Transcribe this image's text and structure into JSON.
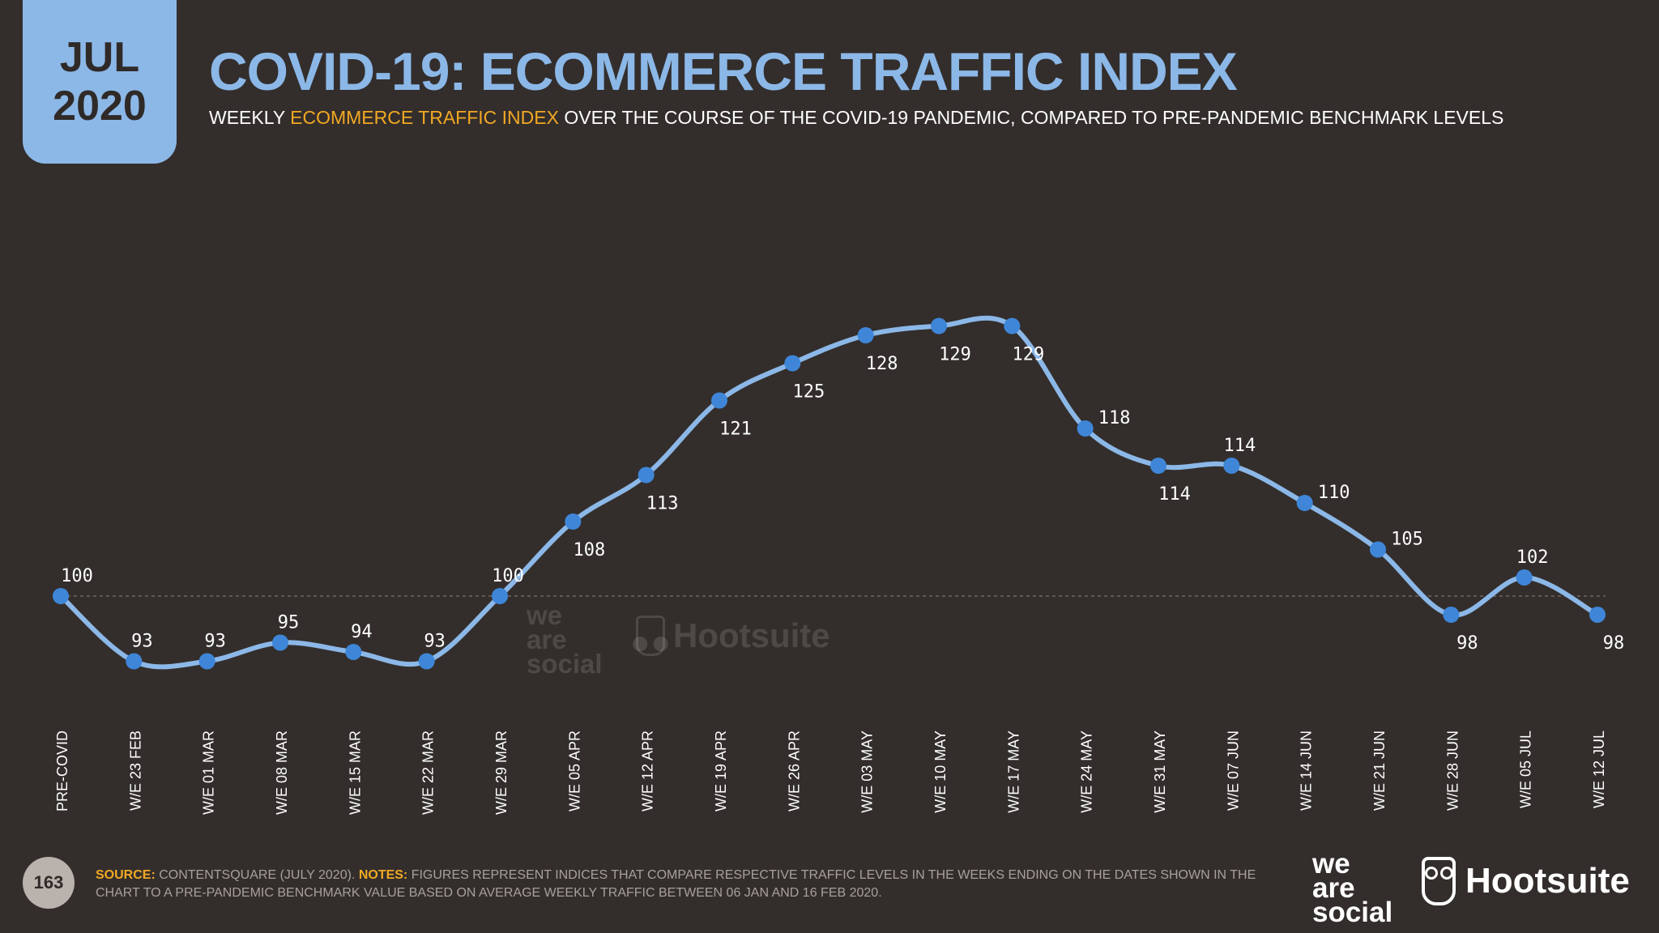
{
  "badge": {
    "month": "JUL",
    "year": "2020"
  },
  "title": "COVID-19: ECOMMERCE TRAFFIC INDEX",
  "subtitle": {
    "prefix": "WEEKLY ",
    "highlight": "ECOMMERCE TRAFFIC INDEX",
    "suffix": " OVER THE COURSE OF THE COVID-19 PANDEMIC, COMPARED TO PRE-PANDEMIC BENCHMARK LEVELS"
  },
  "page_number": "163",
  "footer": {
    "source_label": "SOURCE:",
    "source_text": " CONTENTSQUARE (JULY 2020). ",
    "notes_label": "NOTES:",
    "notes_text": " FIGURES REPRESENT INDICES THAT COMPARE RESPECTIVE TRAFFIC LEVELS IN THE WEEKS ENDING ON THE DATES SHOWN IN THE CHART TO A PRE-PANDEMIC BENCHMARK VALUE BASED ON AVERAGE WEEKLY TRAFFIC BETWEEN 06 JAN AND 16 FEB 2020."
  },
  "logos": {
    "we_are_social": [
      "we",
      "are",
      "social"
    ],
    "hootsuite": "Hootsuite"
  },
  "colors": {
    "background": "#332e2c",
    "accent": "#8cb8e8",
    "highlight": "#f2a823",
    "line": "#8cb8e8",
    "point": "#3f86d8"
  },
  "chart_data": {
    "type": "line",
    "categories": [
      "PRE-COVID",
      "W/E 23 FEB",
      "W/E 01 MAR",
      "W/E 08 MAR",
      "W/E 15 MAR",
      "W/E 22 MAR",
      "W/E 29 MAR",
      "W/E 05 APR",
      "W/E 12 APR",
      "W/E 19 APR",
      "W/E 26 APR",
      "W/E 03 MAY",
      "W/E 10 MAY",
      "W/E 17 MAY",
      "W/E 24 MAY",
      "W/E 31 MAY",
      "W/E 07 JUN",
      "W/E 14 JUN",
      "W/E 21 JUN",
      "W/E 28 JUN",
      "W/E 05 JUL",
      "W/E 12 JUL"
    ],
    "values": [
      100,
      93,
      93,
      95,
      94,
      93,
      100,
      108,
      113,
      121,
      125,
      128,
      129,
      129,
      118,
      114,
      114,
      110,
      105,
      98,
      102,
      98
    ],
    "baseline": 100,
    "label_position": [
      "above",
      "above",
      "above",
      "above",
      "above",
      "above",
      "above",
      "below",
      "below",
      "below",
      "below",
      "below",
      "below",
      "below",
      "right",
      "below",
      "above",
      "right",
      "right",
      "below",
      "above",
      "below"
    ],
    "grid": false,
    "legend": "none"
  }
}
